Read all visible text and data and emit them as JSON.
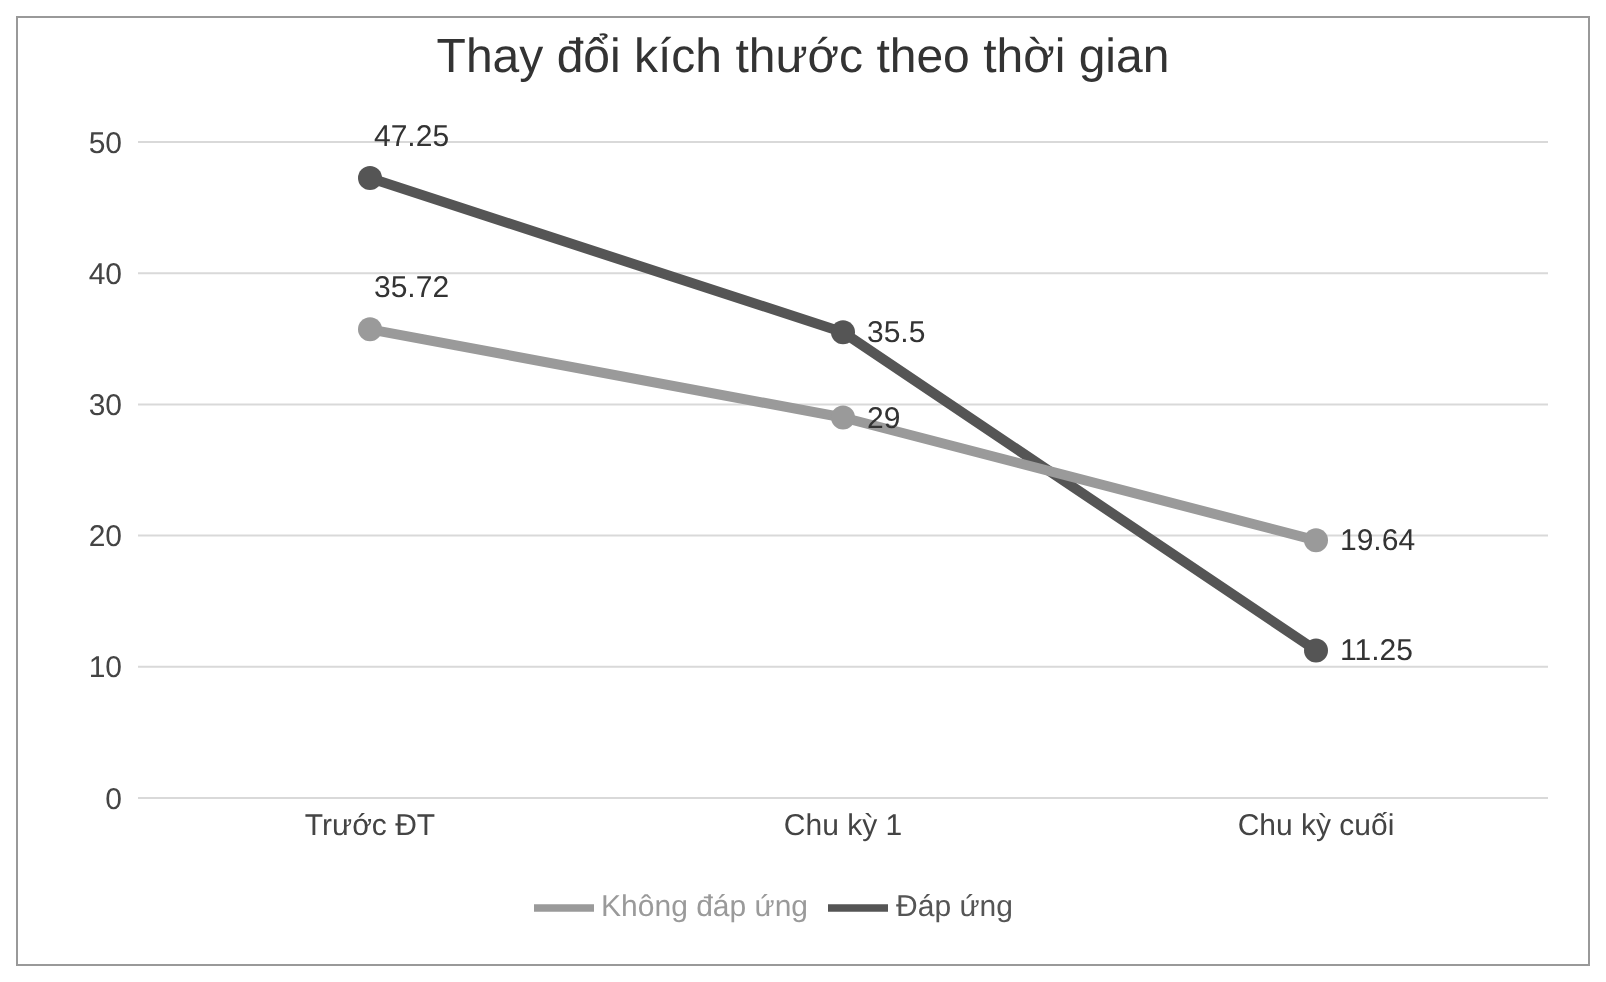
{
  "chart_data": {
    "type": "line",
    "title": "Thay đổi kích thước theo thời gian",
    "categories": [
      "Trước ĐT",
      "Chu kỳ 1",
      "Chu kỳ cuối"
    ],
    "series": [
      {
        "name": "Đáp ứng",
        "color": "#555555",
        "values": [
          47.25,
          35.5,
          11.25
        ]
      },
      {
        "name": "Không đáp ứng",
        "color": "#9a9a9a",
        "values": [
          35.72,
          29,
          19.64
        ]
      }
    ],
    "ylim": [
      0,
      50
    ],
    "yticks": [
      0,
      10,
      20,
      30,
      40,
      50
    ],
    "grid": "y",
    "legend": "bottom",
    "marker": "circle",
    "line_style": "solid",
    "data_labels": true
  }
}
